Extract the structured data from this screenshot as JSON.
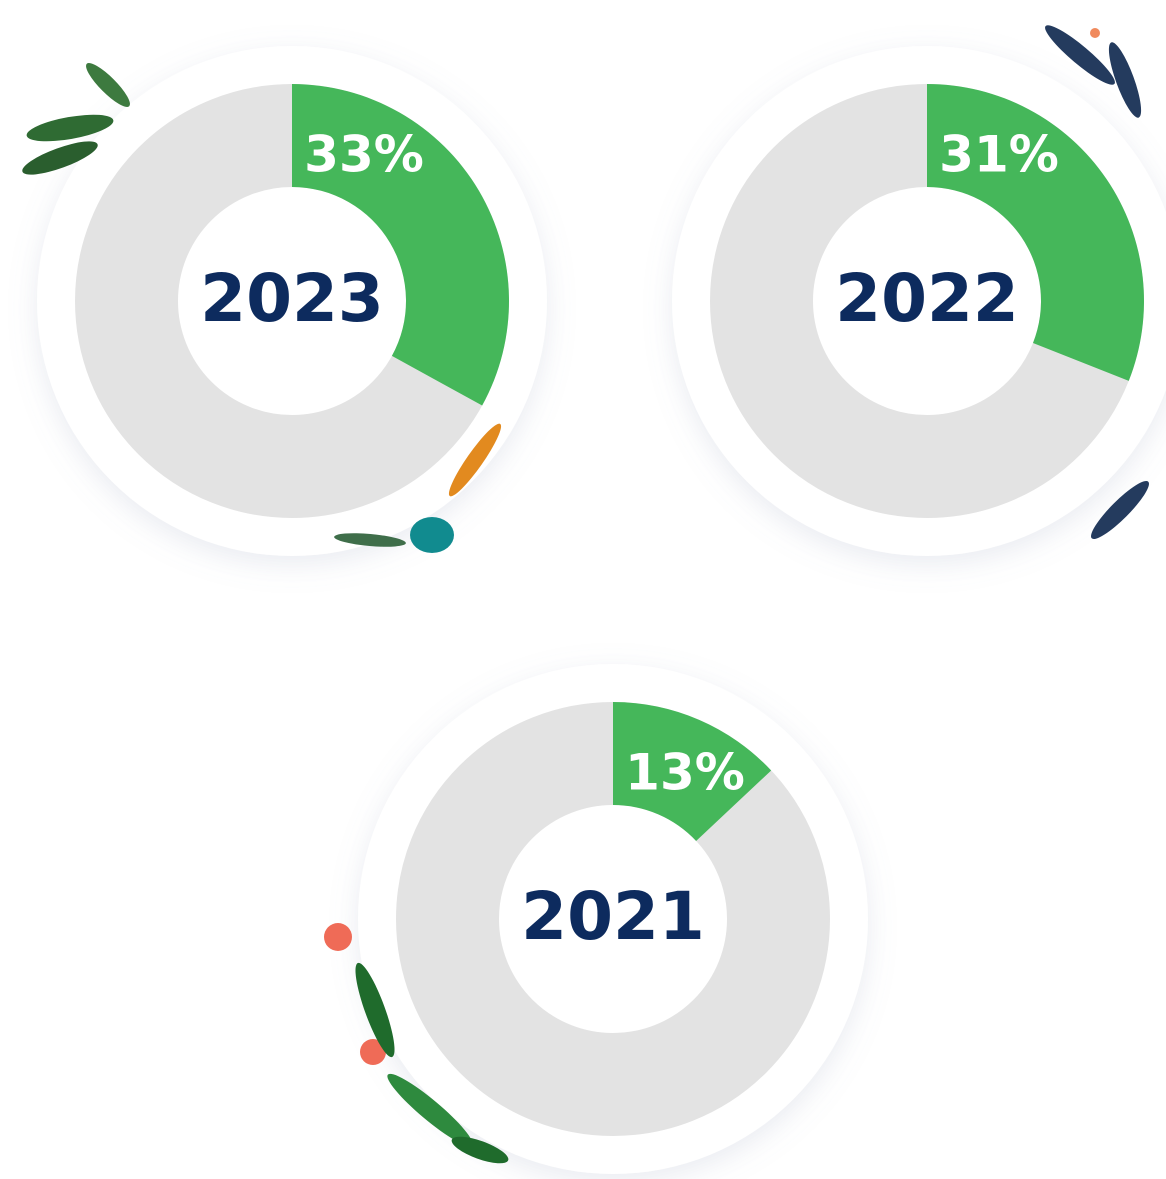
{
  "chart_data": [
    {
      "type": "donut",
      "title": "2023",
      "values": [
        33
      ],
      "value_labels": [
        "33%"
      ],
      "color": "#45b75a",
      "track_color": "#e3e3e3"
    },
    {
      "type": "donut",
      "title": "2022",
      "values": [
        31
      ],
      "value_labels": [
        "31%"
      ],
      "color": "#45b75a",
      "track_color": "#e3e3e3"
    },
    {
      "type": "donut",
      "title": "2021",
      "values": [
        13
      ],
      "value_labels": [
        "13%"
      ],
      "color": "#45b75a",
      "track_color": "#e3e3e3"
    }
  ]
}
